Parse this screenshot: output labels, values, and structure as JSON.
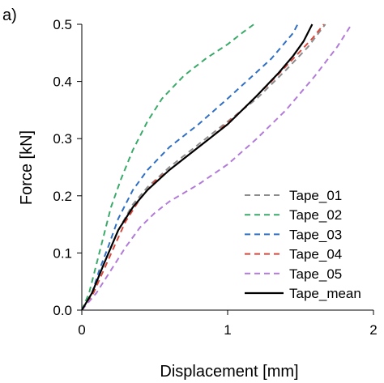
{
  "chart_data": {
    "type": "line",
    "panel_label": "a)",
    "xlabel": "Displacement [mm]",
    "ylabel": "Force [kN]",
    "xlim": [
      0,
      2
    ],
    "ylim": [
      0,
      0.5
    ],
    "x_ticks": [
      0,
      1,
      2
    ],
    "y_ticks": [
      0.0,
      0.1,
      0.2,
      0.3,
      0.4,
      0.5
    ],
    "x_tick_labels": [
      "0",
      "1",
      "2"
    ],
    "y_tick_labels": [
      "0.0",
      "0.1",
      "0.2",
      "0.3",
      "0.4",
      "0.5"
    ],
    "grid": false,
    "legend_position": "bottom-right",
    "series": [
      {
        "name": "Tape_01",
        "color": "#8c8c8c",
        "dash": "dashed",
        "points": [
          [
            0,
            0
          ],
          [
            0.07,
            0.03
          ],
          [
            0.15,
            0.08
          ],
          [
            0.25,
            0.14
          ],
          [
            0.35,
            0.185
          ],
          [
            0.45,
            0.215
          ],
          [
            0.6,
            0.25
          ],
          [
            0.8,
            0.29
          ],
          [
            1.0,
            0.33
          ],
          [
            1.2,
            0.37
          ],
          [
            1.4,
            0.42
          ],
          [
            1.55,
            0.46
          ],
          [
            1.67,
            0.5
          ]
        ]
      },
      {
        "name": "Tape_02",
        "color": "#3aaa6a",
        "dash": "dashed",
        "points": [
          [
            0,
            0
          ],
          [
            0.05,
            0.03
          ],
          [
            0.1,
            0.08
          ],
          [
            0.15,
            0.13
          ],
          [
            0.2,
            0.18
          ],
          [
            0.27,
            0.23
          ],
          [
            0.35,
            0.28
          ],
          [
            0.45,
            0.33
          ],
          [
            0.55,
            0.37
          ],
          [
            0.7,
            0.41
          ],
          [
            0.85,
            0.44
          ],
          [
            1.0,
            0.465
          ],
          [
            1.1,
            0.485
          ],
          [
            1.18,
            0.5
          ]
        ]
      },
      {
        "name": "Tape_03",
        "color": "#2f6fc4",
        "dash": "dashed",
        "points": [
          [
            0,
            0
          ],
          [
            0.07,
            0.03
          ],
          [
            0.12,
            0.07
          ],
          [
            0.18,
            0.11
          ],
          [
            0.25,
            0.16
          ],
          [
            0.35,
            0.21
          ],
          [
            0.45,
            0.245
          ],
          [
            0.6,
            0.285
          ],
          [
            0.8,
            0.325
          ],
          [
            1.0,
            0.37
          ],
          [
            1.15,
            0.405
          ],
          [
            1.3,
            0.44
          ],
          [
            1.45,
            0.485
          ],
          [
            1.48,
            0.5
          ]
        ]
      },
      {
        "name": "Tape_04",
        "color": "#d9463a",
        "dash": "dashed",
        "points": [
          [
            0,
            0
          ],
          [
            0.08,
            0.03
          ],
          [
            0.15,
            0.07
          ],
          [
            0.22,
            0.11
          ],
          [
            0.3,
            0.155
          ],
          [
            0.4,
            0.195
          ],
          [
            0.5,
            0.225
          ],
          [
            0.7,
            0.265
          ],
          [
            0.9,
            0.305
          ],
          [
            1.1,
            0.35
          ],
          [
            1.3,
            0.4
          ],
          [
            1.45,
            0.44
          ],
          [
            1.58,
            0.475
          ],
          [
            1.66,
            0.5
          ]
        ]
      },
      {
        "name": "Tape_05",
        "color": "#b27bd9",
        "dash": "dashed",
        "points": [
          [
            0,
            0
          ],
          [
            0.1,
            0.03
          ],
          [
            0.2,
            0.07
          ],
          [
            0.3,
            0.11
          ],
          [
            0.4,
            0.145
          ],
          [
            0.5,
            0.17
          ],
          [
            0.6,
            0.19
          ],
          [
            0.8,
            0.22
          ],
          [
            1.0,
            0.255
          ],
          [
            1.2,
            0.3
          ],
          [
            1.4,
            0.35
          ],
          [
            1.6,
            0.41
          ],
          [
            1.75,
            0.46
          ],
          [
            1.85,
            0.5
          ]
        ]
      },
      {
        "name": "Tape_mean",
        "color": "#000000",
        "dash": "solid",
        "points": [
          [
            0,
            0
          ],
          [
            0.07,
            0.03
          ],
          [
            0.15,
            0.08
          ],
          [
            0.25,
            0.14
          ],
          [
            0.35,
            0.18
          ],
          [
            0.45,
            0.21
          ],
          [
            0.6,
            0.245
          ],
          [
            0.8,
            0.285
          ],
          [
            1.0,
            0.325
          ],
          [
            1.2,
            0.375
          ],
          [
            1.35,
            0.415
          ],
          [
            1.45,
            0.445
          ],
          [
            1.52,
            0.47
          ],
          [
            1.58,
            0.5
          ]
        ]
      }
    ]
  }
}
